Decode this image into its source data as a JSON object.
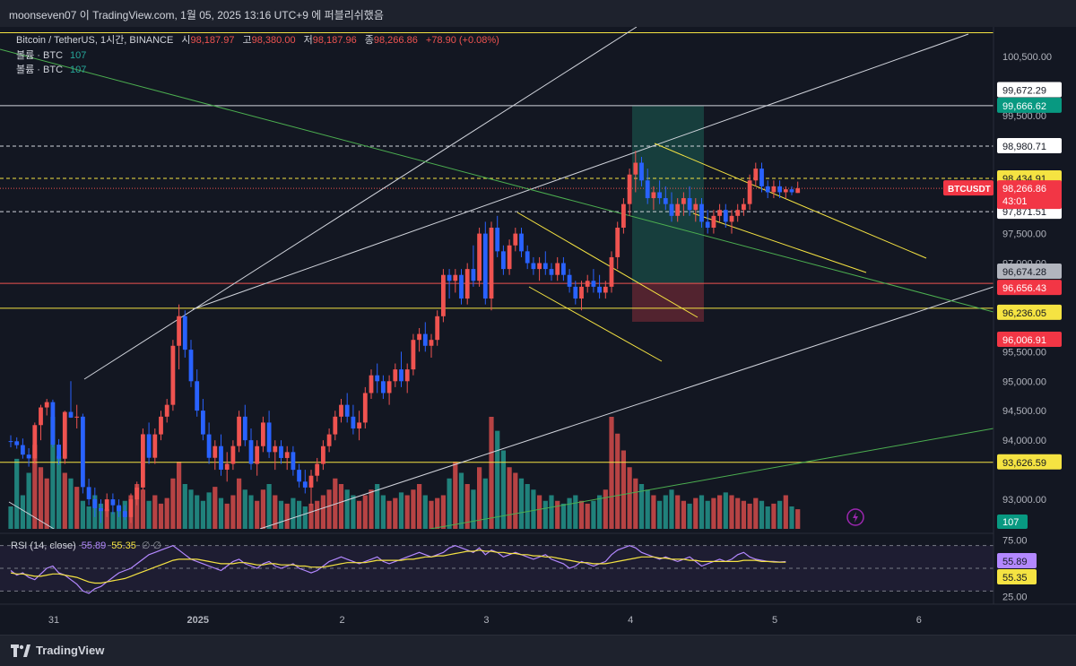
{
  "header": {
    "title": "moonseven07 이 TradingView.com, 1월 05, 2025 13:16 UTC+9 에 퍼블리쉬했음"
  },
  "legend": {
    "symbol": "Bitcoin / TetherUS, 1시간, BINANCE",
    "open_label": "시",
    "open": "98,187.97",
    "high_label": "고",
    "high": "98,380.00",
    "low_label": "저",
    "low": "98,187.96",
    "close_label": "종",
    "close": "98,266.86",
    "change": "+78.90 (+0.08%)",
    "volume_rows": [
      {
        "label": "볼륨 · BTC",
        "value": "107"
      },
      {
        "label": "볼륨 · BTC",
        "value": "107"
      }
    ]
  },
  "rsi_legend": {
    "label": "RSI (14, close)",
    "rsi": "55.89",
    "ma": "55.35",
    "extra": "∅  ∅"
  },
  "brand": {
    "name": "TradingView"
  },
  "colors": {
    "background": "#131722",
    "up": "#26a69a",
    "down": "#ef5350",
    "candle_up": "#ef5350",
    "candle_down": "#2962ff",
    "vol_up": "#26a69a",
    "vol_down": "#ef5350",
    "yellow": "#f5e342",
    "white": "#d1d4dc",
    "green_line": "#4caf50",
    "rsi": "#b388ff"
  },
  "chart_data": {
    "type": "candlestick",
    "symbol": "BTCUSDT",
    "interval": "1시간",
    "exchange": "BINANCE",
    "price_axis": {
      "min": 92500,
      "max": 101000,
      "ticks": [
        "100,500.00",
        "100,000.00",
        "99,500.00",
        "97,500.00",
        "97,000.00",
        "95,500.00",
        "95,000.00",
        "94,500.00",
        "94,000.00",
        "93,000.00"
      ]
    },
    "time_axis": {
      "labels": [
        {
          "text": "31",
          "hour": 0
        },
        {
          "text": "2025",
          "hour": 24
        },
        {
          "text": "2",
          "hour": 48
        },
        {
          "text": "3",
          "hour": 72
        },
        {
          "text": "4",
          "hour": 96
        },
        {
          "text": "5",
          "hour": 120
        },
        {
          "text": "6",
          "hour": 144
        }
      ],
      "bold": [
        "2025"
      ]
    },
    "current_price": {
      "label": "BTCUSDT",
      "value": "98,266.86",
      "countdown": "43:01"
    },
    "horizontal_lines": [
      {
        "price": 100901.7,
        "label": "100,901.70",
        "color": "yellow",
        "style": "solid"
      },
      {
        "price": 99666.62,
        "label": "99,666.62",
        "color": "white",
        "style": "solid"
      },
      {
        "price": 98980.71,
        "label": "98,980.71",
        "color": "white",
        "style": "dashed"
      },
      {
        "price": 98434.91,
        "label": "98,434.91",
        "color": "yellow",
        "style": "dashed"
      },
      {
        "price": 97871.51,
        "label": "97,871.51",
        "color": "white",
        "style": "dashed"
      },
      {
        "price": 96656.43,
        "label": "96,656.43",
        "color": "red",
        "style": "solid"
      },
      {
        "price": 96236.05,
        "label": "96,236.05",
        "color": "yellow",
        "style": "solid"
      },
      {
        "price": 93626.59,
        "label": "93,626.59",
        "color": "yellow",
        "style": "solid"
      }
    ],
    "price_tags": [
      {
        "price": 99672.29,
        "label": "99,672.29",
        "bg": "white"
      },
      {
        "price": 99666.62,
        "label": "99,666.62",
        "bg": "teal"
      },
      {
        "price": 98980.71,
        "label": "98,980.71",
        "bg": "white"
      },
      {
        "price": 98434.91,
        "label": "98,434.91",
        "bg": "yellow"
      },
      {
        "price": 97871.51,
        "label": "97,871.51",
        "bg": "white"
      },
      {
        "price": 96674.28,
        "label": "96,674.28",
        "bg": "grey"
      },
      {
        "price": 96656.43,
        "label": "96,656.43",
        "bg": "red"
      },
      {
        "price": 96236.05,
        "label": "96,236.05",
        "bg": "yellow"
      },
      {
        "price": 96006.91,
        "label": "96,006.91",
        "bg": "red"
      },
      {
        "price": 93626.59,
        "label": "93,626.59",
        "bg": "yellow"
      }
    ],
    "candles": [
      [
        93986,
        94085,
        93881,
        93983
      ],
      [
        93983,
        94050,
        93857,
        93918
      ],
      [
        93918,
        94030,
        93689,
        93757
      ],
      [
        93757,
        93865,
        93553,
        93693
      ],
      [
        93693,
        94300,
        93600,
        94257
      ],
      [
        94257,
        94600,
        94000,
        94556
      ],
      [
        94556,
        94700,
        94420,
        94646
      ],
      [
        94646,
        94688,
        93880,
        93925
      ],
      [
        93925,
        94020,
        93586,
        93688
      ],
      [
        93688,
        94500,
        93600,
        94480
      ],
      [
        94480,
        95000,
        94380,
        94384
      ],
      [
        94384,
        94600,
        94200,
        94400
      ],
      [
        94400,
        94450,
        93100,
        93208
      ],
      [
        93208,
        93350,
        92900,
        93002
      ],
      [
        93002,
        93200,
        92700,
        92850
      ],
      [
        92850,
        93000,
        92600,
        92800
      ],
      [
        92800,
        93100,
        92700,
        93000
      ],
      [
        93000,
        93100,
        92750,
        92900
      ],
      [
        92900,
        93000,
        92700,
        92800
      ],
      [
        92800,
        92900,
        92650,
        92700
      ],
      [
        92700,
        93100,
        92600,
        93000
      ],
      [
        93000,
        93300,
        92900,
        93200
      ],
      [
        93200,
        94200,
        93150,
        94102
      ],
      [
        94102,
        94300,
        93600,
        93704
      ],
      [
        93704,
        94200,
        93600,
        94100
      ],
      [
        94100,
        94500,
        94000,
        94400
      ],
      [
        94400,
        94700,
        94300,
        94600
      ],
      [
        94600,
        95700,
        94500,
        95600
      ],
      [
        95600,
        96300,
        95200,
        96102
      ],
      [
        96102,
        96200,
        95400,
        95534
      ],
      [
        95534,
        95700,
        94900,
        95000
      ],
      [
        95000,
        95200,
        94400,
        94502
      ],
      [
        94502,
        94700,
        94000,
        94100
      ],
      [
        94100,
        94300,
        93600,
        93703
      ],
      [
        93703,
        94000,
        93500,
        93901
      ],
      [
        93901,
        94100,
        93400,
        93502
      ],
      [
        93502,
        93800,
        93300,
        93601
      ],
      [
        93601,
        94000,
        93500,
        93902
      ],
      [
        93902,
        94500,
        93800,
        94400
      ],
      [
        94400,
        94600,
        93900,
        94001
      ],
      [
        94001,
        94200,
        93500,
        93600
      ],
      [
        93600,
        94000,
        93400,
        93900
      ],
      [
        93900,
        94400,
        93800,
        94300
      ],
      [
        94300,
        94500,
        93700,
        93800
      ],
      [
        93800,
        94000,
        93500,
        93900
      ],
      [
        93900,
        94000,
        93600,
        93700
      ],
      [
        93700,
        93900,
        93500,
        93800
      ],
      [
        93800,
        93900,
        93400,
        93500
      ],
      [
        93500,
        93600,
        93200,
        93300
      ],
      [
        93300,
        93500,
        93100,
        93200
      ],
      [
        93200,
        93500,
        92900,
        93400
      ],
      [
        93400,
        93700,
        93300,
        93600
      ],
      [
        93600,
        94000,
        93500,
        93900
      ],
      [
        93900,
        94200,
        93800,
        94100
      ],
      [
        94100,
        94500,
        94000,
        94400
      ],
      [
        94400,
        94700,
        94300,
        94600
      ],
      [
        94600,
        94800,
        94300,
        94400
      ],
      [
        94400,
        94600,
        94100,
        94200
      ],
      [
        94200,
        94500,
        94000,
        94300
      ],
      [
        94300,
        94900,
        94200,
        94800
      ],
      [
        94800,
        95200,
        94700,
        95100
      ],
      [
        95100,
        95300,
        94800,
        95000
      ],
      [
        95000,
        95100,
        94700,
        94800
      ],
      [
        94800,
        95100,
        94600,
        95000
      ],
      [
        95000,
        95300,
        94900,
        95200
      ],
      [
        95200,
        95500,
        94900,
        95000
      ],
      [
        95000,
        95300,
        94800,
        95200
      ],
      [
        95200,
        95800,
        95100,
        95700
      ],
      [
        95700,
        95900,
        95500,
        95800
      ],
      [
        95800,
        96000,
        95500,
        95600
      ],
      [
        95600,
        95800,
        95400,
        95700
      ],
      [
        95700,
        96200,
        95600,
        96100
      ],
      [
        96100,
        96900,
        96000,
        96800
      ],
      [
        96800,
        96900,
        96400,
        96700
      ],
      [
        96700,
        96900,
        96500,
        96800
      ],
      [
        96800,
        96900,
        96300,
        96400
      ],
      [
        96400,
        97000,
        96300,
        96900
      ],
      [
        96900,
        97300,
        96600,
        96700
      ],
      [
        96700,
        97600,
        96600,
        97500
      ],
      [
        97500,
        97700,
        96300,
        96400
      ],
      [
        96400,
        97700,
        96200,
        97600
      ],
      [
        97600,
        97800,
        97100,
        97200
      ],
      [
        97200,
        97300,
        96800,
        96900
      ],
      [
        96900,
        97400,
        96800,
        97300
      ],
      [
        97300,
        97600,
        97200,
        97500
      ],
      [
        97500,
        97600,
        97100,
        97200
      ],
      [
        97200,
        97300,
        96900,
        97000
      ],
      [
        97000,
        97100,
        96800,
        96900
      ],
      [
        96900,
        97100,
        96700,
        97000
      ],
      [
        97000,
        97200,
        96800,
        96900
      ],
      [
        96900,
        97000,
        96700,
        96800
      ],
      [
        96800,
        97100,
        96700,
        97000
      ],
      [
        97000,
        97100,
        96700,
        96800
      ],
      [
        96800,
        96900,
        96500,
        96600
      ],
      [
        96600,
        96700,
        96300,
        96400
      ],
      [
        96400,
        96700,
        96200,
        96600
      ],
      [
        96600,
        96800,
        96500,
        96700
      ],
      [
        96700,
        96900,
        96500,
        96600
      ],
      [
        96600,
        96800,
        96400,
        96500
      ],
      [
        96500,
        96700,
        96400,
        96600
      ],
      [
        96600,
        97200,
        96500,
        97100
      ],
      [
        97100,
        97700,
        96900,
        97600
      ],
      [
        97600,
        98100,
        97500,
        98000
      ],
      [
        98000,
        98600,
        97800,
        98500
      ],
      [
        98500,
        98900,
        98200,
        98700
      ],
      [
        98700,
        98800,
        98300,
        98400
      ],
      [
        98400,
        98600,
        98000,
        98100
      ],
      [
        98100,
        98300,
        97900,
        98200
      ],
      [
        98200,
        98400,
        98000,
        98100
      ],
      [
        98100,
        98300,
        97900,
        98000
      ],
      [
        98000,
        98200,
        97700,
        97800
      ],
      [
        97800,
        98100,
        97700,
        98000
      ],
      [
        98000,
        98200,
        97800,
        98100
      ],
      [
        98100,
        98300,
        97800,
        97900
      ],
      [
        97900,
        98100,
        97700,
        98000
      ],
      [
        98000,
        98100,
        97600,
        97700
      ],
      [
        97700,
        97900,
        97500,
        97600
      ],
      [
        97600,
        97900,
        97500,
        97800
      ],
      [
        97800,
        98000,
        97700,
        97900
      ],
      [
        97900,
        98000,
        97600,
        97700
      ],
      [
        97700,
        97900,
        97500,
        97800
      ],
      [
        97800,
        98000,
        97700,
        97900
      ],
      [
        97900,
        98100,
        97800,
        98000
      ],
      [
        98000,
        98500,
        97900,
        98400
      ],
      [
        98400,
        98700,
        98300,
        98600
      ],
      [
        98600,
        98700,
        98200,
        98300
      ],
      [
        98300,
        98400,
        98100,
        98200
      ],
      [
        98200,
        98400,
        98100,
        98300
      ],
      [
        98300,
        98400,
        98100,
        98200
      ],
      [
        98200,
        98300,
        98100,
        98250
      ],
      [
        98250,
        98300,
        98150,
        98200
      ],
      [
        98187.97,
        98380,
        98187.96,
        98266.86
      ]
    ],
    "volumes": [
      8,
      25,
      12,
      20,
      30,
      22,
      18,
      40,
      26,
      20,
      18,
      15,
      10,
      8,
      12,
      9,
      7,
      6,
      8,
      10,
      12,
      16,
      14,
      10,
      12,
      9,
      11,
      18,
      24,
      16,
      14,
      12,
      10,
      13,
      15,
      11,
      9,
      12,
      18,
      14,
      12,
      10,
      14,
      16,
      12,
      10,
      9,
      11,
      10,
      8,
      9,
      10,
      12,
      14,
      18,
      16,
      14,
      12,
      10,
      12,
      14,
      16,
      12,
      10,
      11,
      13,
      12,
      14,
      16,
      12,
      10,
      11,
      12,
      18,
      24,
      20,
      16,
      14,
      22,
      18,
      40,
      35,
      28,
      22,
      20,
      18,
      16,
      14,
      12,
      10,
      12,
      10,
      9,
      11,
      12,
      10,
      9,
      10,
      12,
      14,
      40,
      34,
      28,
      22,
      18,
      16,
      14,
      12,
      10,
      12,
      14,
      12,
      10,
      9,
      11,
      12,
      10,
      11,
      12,
      13,
      12,
      11,
      10,
      9,
      11,
      10,
      8,
      9,
      10,
      12,
      8,
      7
    ],
    "volume_axis_tag": "107",
    "rsi": {
      "ticks": [
        "75.00",
        "25.00"
      ],
      "levels": [
        70,
        50,
        30
      ],
      "min": 20,
      "max": 80,
      "values": [
        48,
        44,
        46,
        42,
        40,
        45,
        50,
        52,
        46,
        44,
        40,
        36,
        30,
        28,
        32,
        34,
        38,
        42,
        46,
        48,
        50,
        54,
        58,
        62,
        64,
        66,
        68,
        70,
        66,
        62,
        58,
        56,
        54,
        52,
        50,
        48,
        52,
        56,
        58,
        54,
        52,
        50,
        54,
        56,
        52,
        50,
        52,
        54,
        50,
        48,
        46,
        48,
        52,
        56,
        58,
        60,
        58,
        56,
        54,
        56,
        58,
        60,
        56,
        54,
        56,
        58,
        60,
        62,
        64,
        62,
        60,
        62,
        64,
        68,
        70,
        68,
        66,
        64,
        68,
        62,
        66,
        64,
        60,
        62,
        64,
        62,
        60,
        58,
        60,
        62,
        58,
        56,
        54,
        50,
        52,
        56,
        54,
        52,
        54,
        56,
        62,
        66,
        68,
        70,
        68,
        64,
        62,
        60,
        58,
        60,
        58,
        56,
        58,
        60,
        56,
        52,
        54,
        56,
        58,
        56,
        58,
        62,
        64,
        60,
        58,
        57,
        56,
        56,
        55.5,
        55.89
      ],
      "ma_values": [
        46,
        45,
        45,
        44,
        43,
        43,
        44,
        45,
        45,
        44,
        43,
        42,
        40,
        38,
        37,
        37,
        38,
        39,
        40,
        41,
        43,
        45,
        47,
        49,
        51,
        53,
        55,
        57,
        58,
        58,
        58,
        58,
        57,
        56,
        55,
        54,
        54,
        54,
        55,
        55,
        54,
        53,
        53,
        54,
        54,
        53,
        53,
        53,
        52,
        52,
        51,
        51,
        51,
        52,
        53,
        54,
        55,
        55,
        55,
        55,
        56,
        57,
        57,
        57,
        57,
        57,
        58,
        58,
        59,
        60,
        60,
        61,
        61,
        62,
        63,
        64,
        65,
        65,
        66,
        65,
        65,
        64,
        64,
        63,
        63,
        62,
        62,
        61,
        61,
        60,
        60,
        59,
        58,
        57,
        56,
        55,
        55,
        54,
        54,
        54,
        55,
        56,
        57,
        58,
        59,
        60,
        60,
        60,
        59,
        59,
        58,
        58,
        58,
        57,
        57,
        56,
        56,
        56,
        56,
        56,
        56,
        56,
        57,
        57,
        57,
        56,
        56,
        55.5,
        55.4,
        55.35
      ],
      "tag_rsi": "55.89",
      "tag_ma": "55.35"
    }
  }
}
